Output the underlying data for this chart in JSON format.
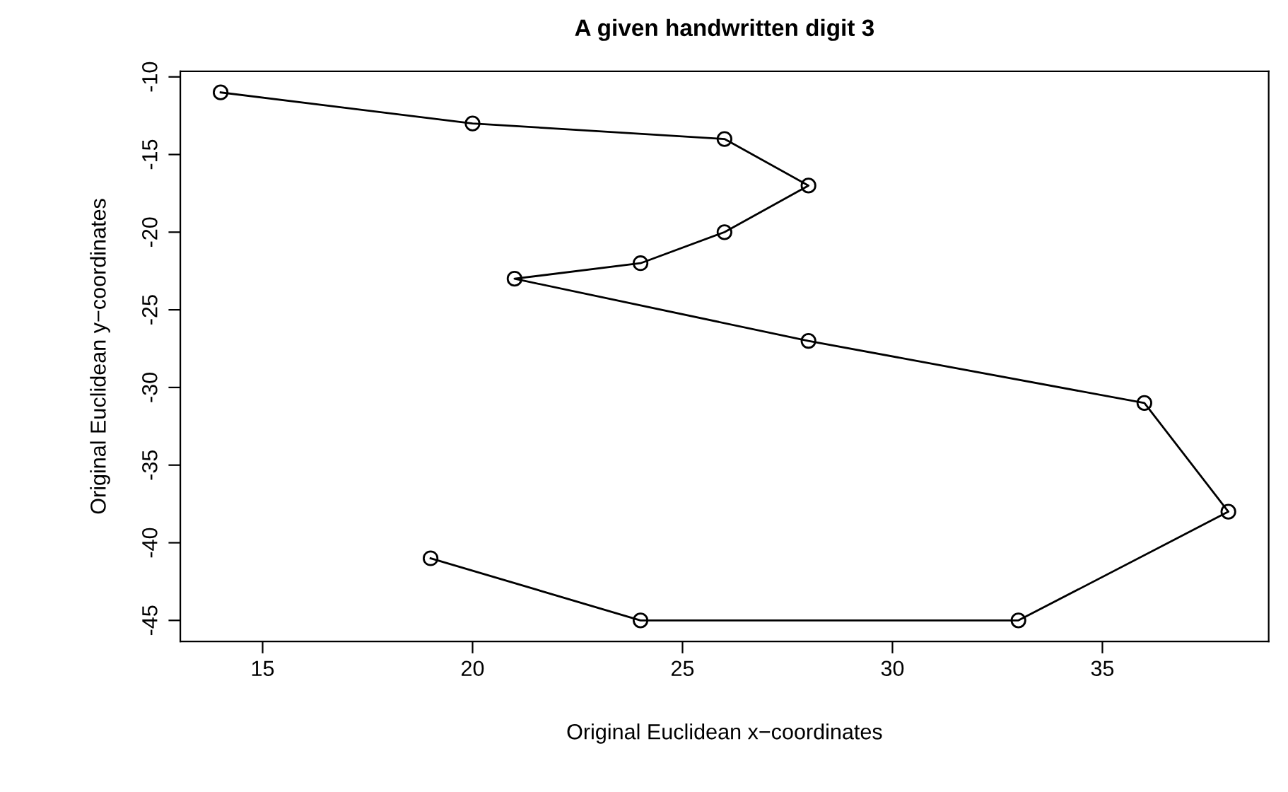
{
  "chart_data": {
    "type": "line",
    "title": "A given handwritten digit 3",
    "xlabel": "Original Euclidean x−coordinates",
    "ylabel": "Original Euclidean y−coordinates",
    "series": [
      {
        "color": "#000000",
        "x": [
          14,
          20,
          26,
          28,
          26,
          24,
          21,
          28,
          36,
          38,
          33,
          24,
          19
        ],
        "values": [
          -11,
          -13,
          -14,
          -17,
          -20,
          -22,
          -23,
          -27,
          -31,
          -38,
          -45,
          -45,
          -41
        ]
      }
    ],
    "xlim": [
      13.04,
      38.96
    ],
    "xticks": [
      15,
      20,
      25,
      30,
      35
    ],
    "ylim": [
      -46.36,
      -9.64
    ],
    "yticks": [
      -45,
      -40,
      -35,
      -30,
      -25,
      -20,
      -15,
      -10
    ],
    "grid": false,
    "marker": "circle",
    "line_style": "solid"
  }
}
